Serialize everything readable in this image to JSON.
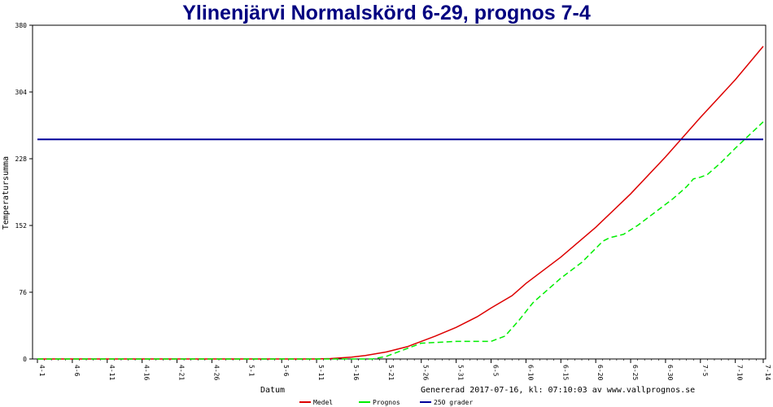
{
  "chart_data": {
    "type": "line",
    "title": "Ylinenjärvi Normalskörd 6-29, prognos 7-4",
    "xlabel": "Datum",
    "ylabel": "Temperatursumma",
    "ylim": [
      0,
      380
    ],
    "yticks": [
      0,
      76,
      152,
      228,
      304,
      380
    ],
    "xlim": [
      "4-1",
      "7-14"
    ],
    "xticks": [
      "4-1",
      "4-6",
      "4-11",
      "4-16",
      "4-21",
      "4-26",
      "5-1",
      "5-6",
      "5-11",
      "5-16",
      "5-21",
      "5-26",
      "5-31",
      "6-5",
      "6-10",
      "6-15",
      "6-20",
      "6-25",
      "6-30",
      "7-5",
      "7-10",
      "7-14"
    ],
    "grid": false,
    "legend_position": "bottom",
    "footer": "Genererad 2017-07-16, kl: 07:10:03 av www.vallprognos.se",
    "series": [
      {
        "name": "Medel",
        "color": "#dd0000",
        "style": "solid",
        "points": [
          [
            "4-1",
            0
          ],
          [
            "5-11",
            0
          ],
          [
            "5-13",
            0.5
          ],
          [
            "5-16",
            2
          ],
          [
            "5-18",
            4
          ],
          [
            "5-21",
            8
          ],
          [
            "5-24",
            14
          ],
          [
            "5-26",
            20
          ],
          [
            "5-28",
            26
          ],
          [
            "5-31",
            36
          ],
          [
            "6-3",
            48
          ],
          [
            "6-5",
            58
          ],
          [
            "6-8",
            72
          ],
          [
            "6-10",
            86
          ],
          [
            "6-15",
            116
          ],
          [
            "6-20",
            150
          ],
          [
            "6-25",
            188
          ],
          [
            "6-30",
            230
          ],
          [
            "7-5",
            275
          ],
          [
            "7-10",
            318
          ],
          [
            "7-14",
            356
          ]
        ]
      },
      {
        "name": "Prognos",
        "color": "#00ee00",
        "style": "dashed",
        "points": [
          [
            "4-1",
            0
          ],
          [
            "5-19",
            0
          ],
          [
            "5-21",
            3
          ],
          [
            "5-23",
            9
          ],
          [
            "5-26",
            18
          ],
          [
            "5-31",
            20
          ],
          [
            "6-5",
            20
          ],
          [
            "6-7",
            26
          ],
          [
            "6-9",
            44
          ],
          [
            "6-11",
            64
          ],
          [
            "6-13",
            78
          ],
          [
            "6-15",
            92
          ],
          [
            "6-18",
            110
          ],
          [
            "6-20",
            126
          ],
          [
            "6-21",
            134
          ],
          [
            "6-22",
            138
          ],
          [
            "6-24",
            142
          ],
          [
            "6-26",
            152
          ],
          [
            "6-29",
            170
          ],
          [
            "7-1",
            182
          ],
          [
            "7-3",
            196
          ],
          [
            "7-4",
            205
          ],
          [
            "7-5",
            207
          ],
          [
            "7-6",
            210
          ],
          [
            "7-8",
            224
          ],
          [
            "7-10",
            240
          ],
          [
            "7-14",
            270
          ]
        ]
      },
      {
        "name": "250 grader",
        "color": "#000099",
        "style": "solid",
        "points": [
          [
            "4-1",
            250
          ],
          [
            "7-14",
            250
          ]
        ]
      }
    ]
  }
}
